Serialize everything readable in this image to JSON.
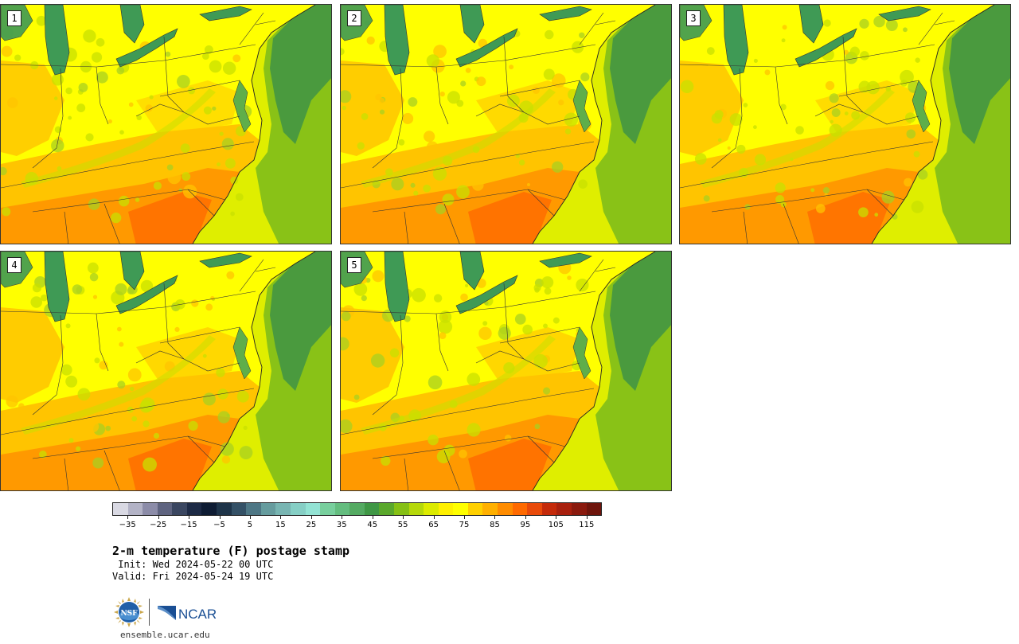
{
  "panels": [
    {
      "label": "1",
      "warmth": 0.55
    },
    {
      "label": "2",
      "warmth": 0.62
    },
    {
      "label": "3",
      "warmth": 0.6
    },
    {
      "label": "4",
      "warmth": 0.66
    },
    {
      "label": "5",
      "warmth": 0.68
    }
  ],
  "colorbar": {
    "colors": [
      "#d9d9e3",
      "#b3b3c6",
      "#8c8ca8",
      "#5f6480",
      "#3a4660",
      "#1d2a45",
      "#0e1c33",
      "#1e3449",
      "#345166",
      "#4e7785",
      "#669c9e",
      "#78b5b2",
      "#86cfc5",
      "#93e3d4",
      "#78cf9d",
      "#64bd7f",
      "#54aa62",
      "#3f9745",
      "#5aa82c",
      "#86c015",
      "#b5d80a",
      "#dceb00",
      "#fff000",
      "#ffff00",
      "#ffd000",
      "#ffb000",
      "#ff8c00",
      "#ff6a00",
      "#e84a0a",
      "#c42a0a",
      "#a8200e",
      "#8a1a0e",
      "#6e150c"
    ],
    "tick_values": [
      "−35",
      "−25",
      "−15",
      "−5",
      "5",
      "15",
      "25",
      "35",
      "45",
      "55",
      "65",
      "75",
      "85",
      "95",
      "105",
      "115"
    ],
    "min": -40,
    "max": 120
  },
  "text": {
    "title": "2-m temperature (F) postage stamp",
    "init": " Init: Wed 2024-05-22 00 UTC",
    "valid": "Valid: Fri 2024-05-24 19 UTC",
    "url": "ensemble.ucar.edu"
  },
  "logos": {
    "nsf": "NSF",
    "ncar": "NCAR"
  },
  "map_colors": {
    "ocean_dark": "#4a9a3e",
    "ocean_mid": "#7fbd1a",
    "ocean_light": "#dfee00",
    "land_cool": "#c8e000",
    "land_yellow": "#ffff00",
    "land_warm": "#ffc400",
    "land_hot": "#ff9900",
    "land_hottest": "#ff6f00",
    "lake": "#3f9a55"
  }
}
